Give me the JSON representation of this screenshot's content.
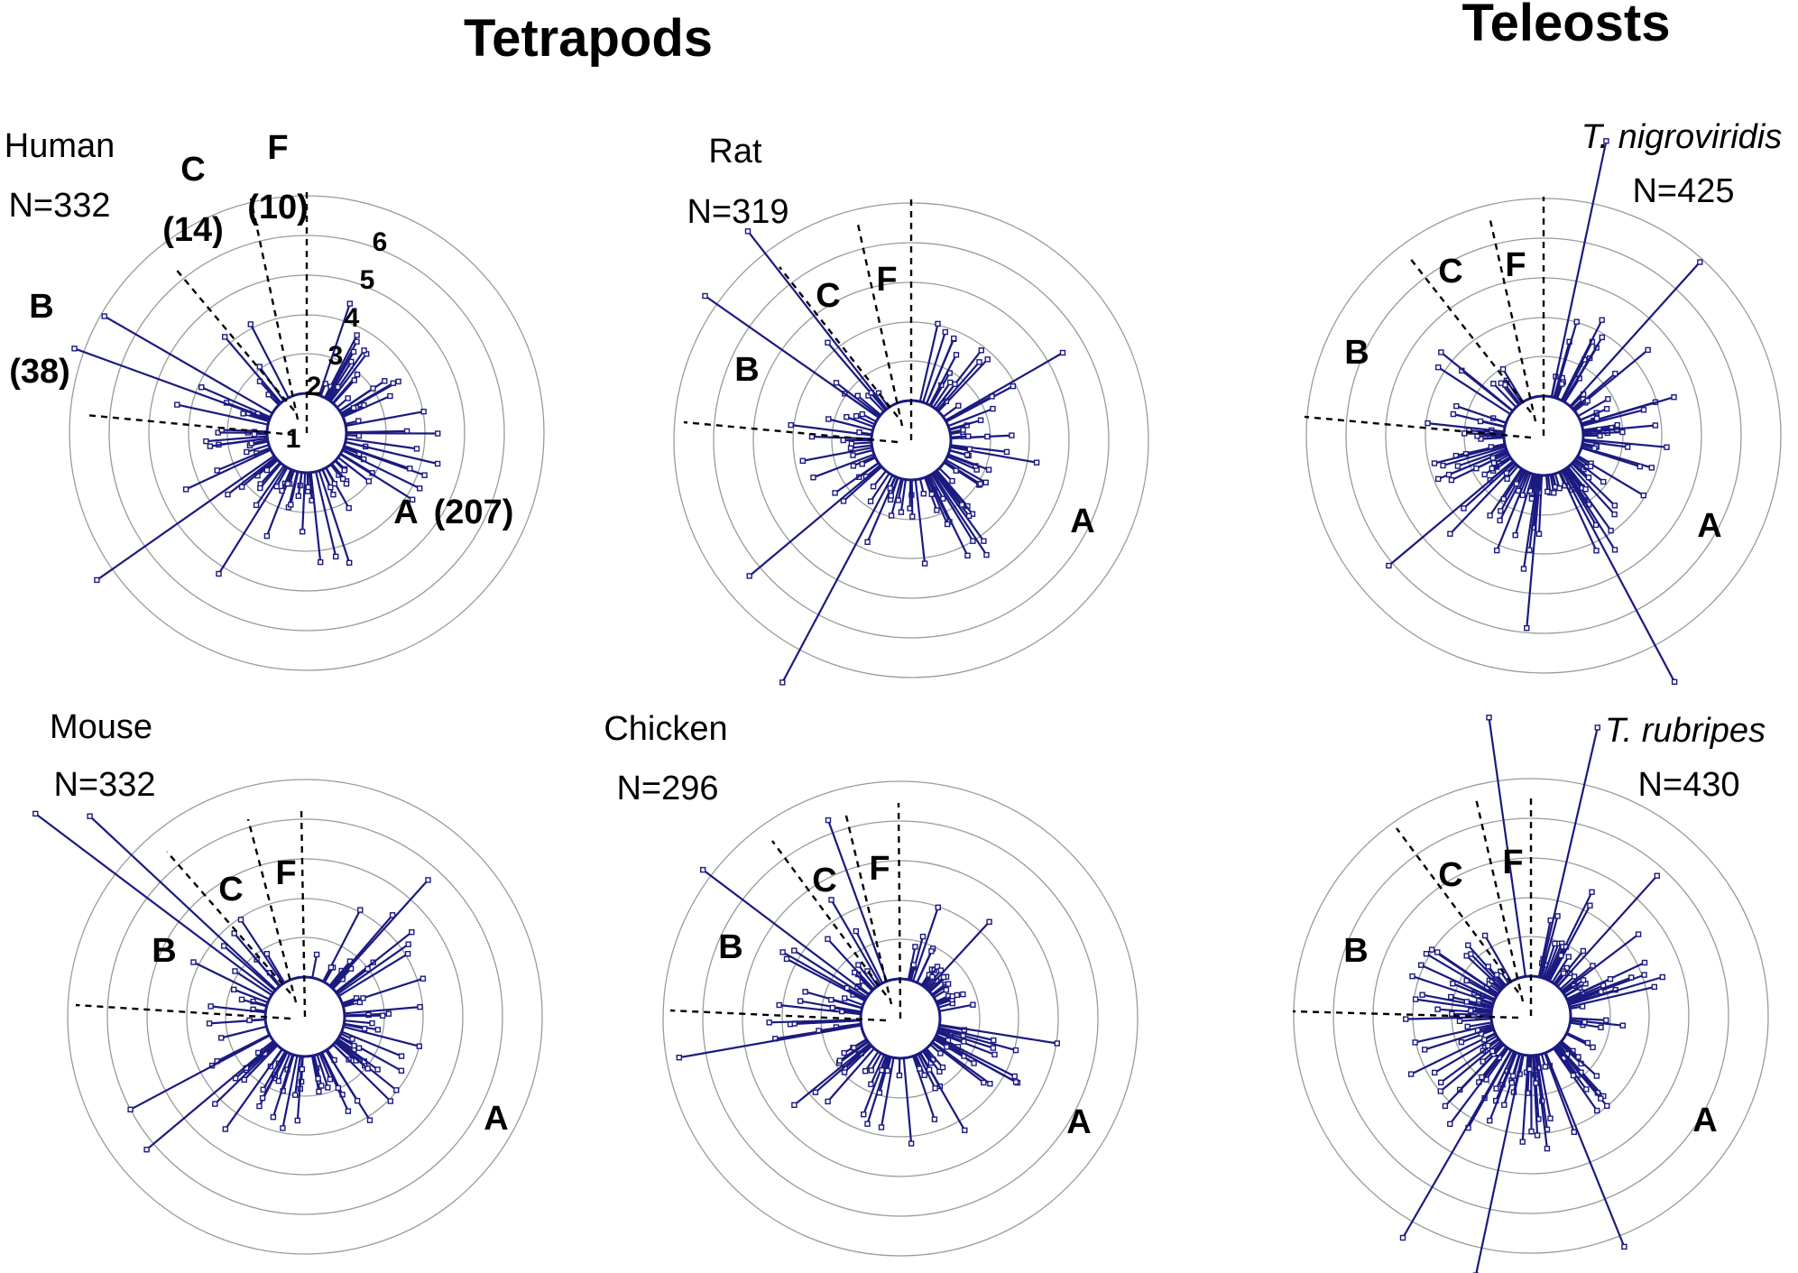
{
  "groups": {
    "tetrapods": "Tetrapods",
    "teleosts": "Teleosts"
  },
  "panels": [
    {
      "id": "human",
      "species": "Human",
      "italic": false,
      "count": "N=332",
      "sectors": {
        "A": "A",
        "A_count": "(207)",
        "B": "B",
        "B_count": "(38)",
        "C": "C",
        "C_count": "(14)",
        "F": "F",
        "F_count": "(10)"
      },
      "rings": [
        "1",
        "2",
        "3",
        "4",
        "5",
        "6"
      ]
    },
    {
      "id": "rat",
      "species": "Rat",
      "italic": false,
      "count": "N=319",
      "sectors": {
        "A": "A",
        "B": "B",
        "C": "C",
        "F": "F"
      }
    },
    {
      "id": "tnigro",
      "species": "T. nigroviridis",
      "italic": true,
      "count": "N=425",
      "sectors": {
        "A": "A",
        "B": "B",
        "C": "C",
        "F": "F"
      }
    },
    {
      "id": "mouse",
      "species": "Mouse",
      "italic": false,
      "count": "N=332",
      "sectors": {
        "A": "A",
        "B": "B",
        "C": "C",
        "F": "F"
      }
    },
    {
      "id": "chicken",
      "species": "Chicken",
      "italic": false,
      "count": "N=296",
      "sectors": {
        "A": "A",
        "B": "B",
        "C": "C",
        "F": "F"
      }
    },
    {
      "id": "trub",
      "species": "T. rubripes",
      "italic": true,
      "count": "N=430",
      "sectors": {
        "A": "A",
        "B": "B",
        "C": "C",
        "F": "F"
      }
    }
  ],
  "colors": {
    "spike": "#1a1a80",
    "ring": "#9a9a9a",
    "divider": "#000000"
  }
}
